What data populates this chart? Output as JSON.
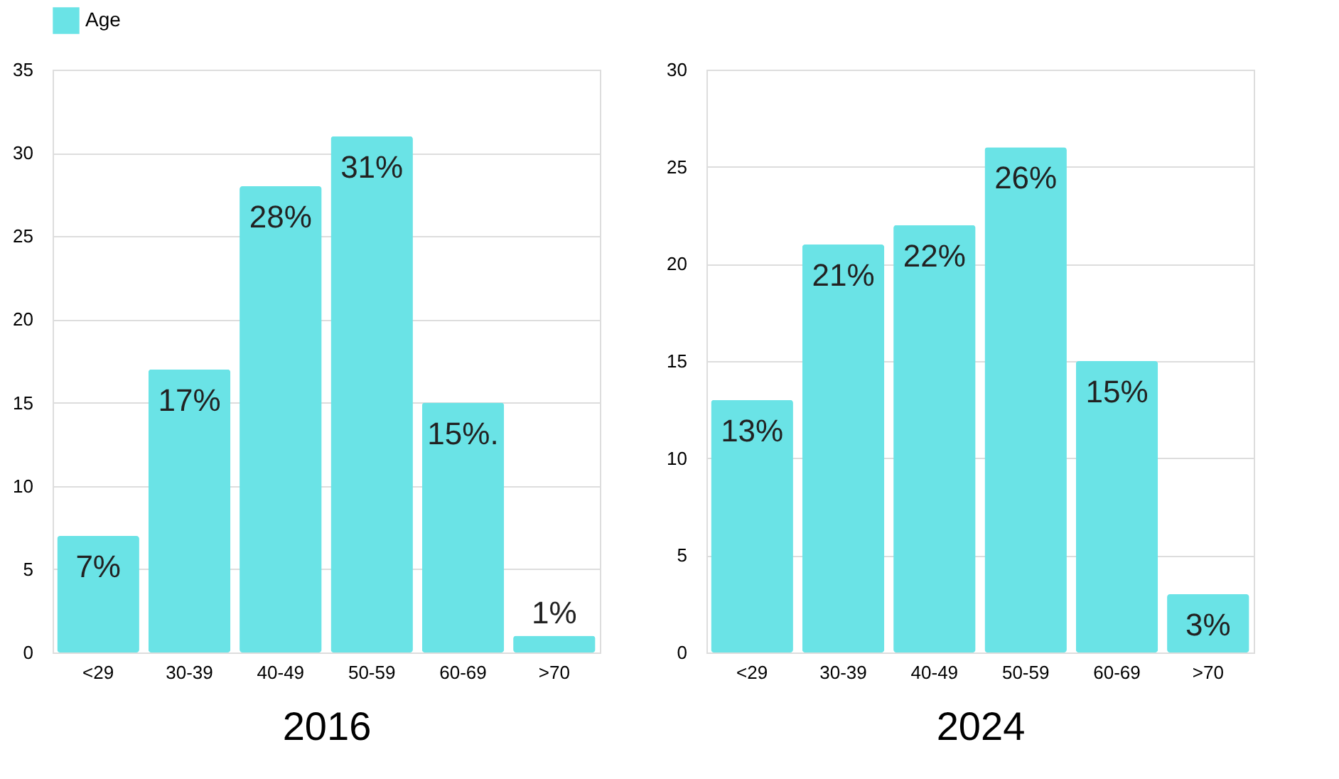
{
  "chart_data": [
    {
      "type": "bar",
      "xlabel": "2016",
      "categories": [
        "<29",
        "30-39",
        "40-49",
        "50-59",
        "60-69",
        ">70"
      ],
      "series": [
        {
          "name": "Age",
          "color": "#6ae3e6",
          "values": [
            7,
            17,
            28,
            31,
            15,
            1
          ],
          "value_labels": [
            "7%",
            "17%",
            "28%",
            "31%",
            "15%.",
            "1%"
          ]
        }
      ],
      "ylim": [
        0,
        35
      ],
      "yticks": [
        0,
        5,
        10,
        15,
        20,
        25,
        30,
        35
      ],
      "grid": "y",
      "legend": "top"
    },
    {
      "type": "bar",
      "xlabel": "2024",
      "categories": [
        "<29",
        "30-39",
        "40-49",
        "50-59",
        "60-69",
        ">70"
      ],
      "series": [
        {
          "name": "Age",
          "color": "#6ae3e6",
          "values": [
            13,
            21,
            22,
            26,
            15,
            3
          ],
          "value_labels": [
            "13%",
            "21%",
            "22%",
            "26%",
            "15%",
            "3%"
          ]
        }
      ],
      "ylim": [
        0,
        30
      ],
      "yticks": [
        0,
        5,
        10,
        15,
        20,
        25,
        30
      ],
      "grid": "y",
      "legend": "top"
    }
  ]
}
